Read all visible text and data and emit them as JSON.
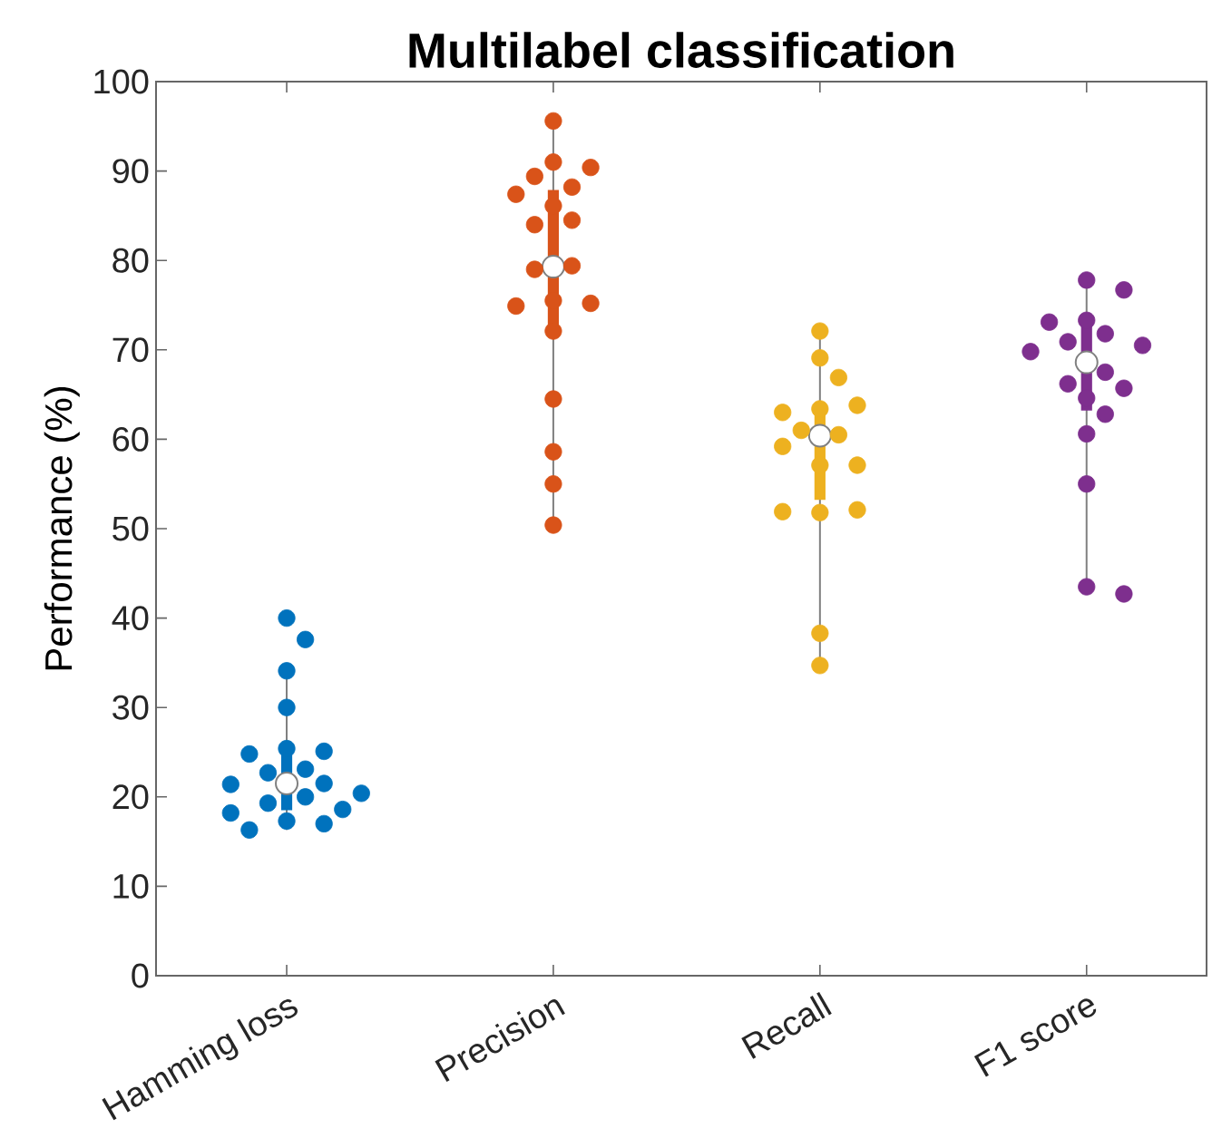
{
  "chart_data": {
    "type": "box",
    "title": "Multilabel classification",
    "ylabel": "Performance (%)",
    "categories": [
      "Hamming loss",
      "Precision",
      "Recall",
      "F1 score"
    ],
    "ylim": [
      0,
      100
    ],
    "yticks": [
      0,
      10,
      20,
      30,
      40,
      50,
      60,
      70,
      80,
      90,
      100
    ],
    "grid": false,
    "boxes": [
      {
        "low": 16.3,
        "q1": 18.6,
        "median": 21.5,
        "q3": 25.3,
        "high": 34.1
      },
      {
        "low": 50.4,
        "q1": 72.8,
        "median": 79.3,
        "q3": 87.8,
        "high": 95.4
      },
      {
        "low": 34.7,
        "q1": 53.3,
        "median": 60.4,
        "q3": 62.9,
        "high": 72.1
      },
      {
        "low": 42.7,
        "q1": 63.3,
        "median": 68.6,
        "q3": 72.8,
        "high": 77.6
      }
    ],
    "colors": [
      "#0072bd",
      "#d95319",
      "#edb120",
      "#7e2f8e"
    ],
    "series": [
      {
        "type": "scatter",
        "color": "#0072bd",
        "x": [
          "Hamming loss",
          "Hamming loss",
          "Hamming loss",
          "Hamming loss",
          "Hamming loss",
          "Hamming loss",
          "Hamming loss",
          "Hamming loss",
          "Hamming loss",
          "Hamming loss",
          "Hamming loss",
          "Hamming loss",
          "Hamming loss",
          "Hamming loss",
          "Hamming loss",
          "Hamming loss",
          "Hamming loss",
          "Hamming loss",
          "Hamming loss"
        ],
        "values": [
          40.0,
          37.6,
          34.1,
          30.0,
          25.4,
          25.1,
          24.8,
          23.1,
          22.7,
          21.5,
          21.4,
          20.4,
          20.0,
          19.3,
          18.6,
          18.2,
          17.3,
          17.0,
          16.3
        ]
      },
      {
        "type": "scatter",
        "color": "#d95319",
        "x": [
          "Precision",
          "Precision",
          "Precision",
          "Precision",
          "Precision",
          "Precision",
          "Precision",
          "Precision",
          "Precision",
          "Precision",
          "Precision",
          "Precision",
          "Precision",
          "Precision",
          "Precision",
          "Precision",
          "Precision",
          "Precision",
          "Precision"
        ],
        "values": [
          95.6,
          91.0,
          90.4,
          89.4,
          88.2,
          87.4,
          86.1,
          84.5,
          84.0,
          79.4,
          79.0,
          75.5,
          75.2,
          74.9,
          72.1,
          64.5,
          58.6,
          55.0,
          50.4
        ]
      },
      {
        "type": "scatter",
        "color": "#edb120",
        "x": [
          "Recall",
          "Recall",
          "Recall",
          "Recall",
          "Recall",
          "Recall",
          "Recall",
          "Recall",
          "Recall",
          "Recall",
          "Recall",
          "Recall",
          "Recall",
          "Recall",
          "Recall",
          "Recall"
        ],
        "values": [
          72.1,
          69.1,
          66.9,
          63.4,
          63.8,
          63.0,
          60.5,
          61.0,
          59.2,
          57.1,
          57.1,
          51.8,
          52.1,
          51.9,
          38.3,
          34.7
        ]
      },
      {
        "type": "scatter",
        "color": "#7e2f8e",
        "x": [
          "F1 score",
          "F1 score",
          "F1 score",
          "F1 score",
          "F1 score",
          "F1 score",
          "F1 score",
          "F1 score",
          "F1 score",
          "F1 score",
          "F1 score",
          "F1 score",
          "F1 score",
          "F1 score",
          "F1 score",
          "F1 score",
          "F1 score"
        ],
        "values": [
          77.8,
          76.7,
          73.3,
          71.8,
          73.1,
          70.9,
          70.5,
          69.8,
          67.5,
          66.2,
          65.7,
          64.6,
          62.8,
          60.6,
          55.0,
          43.5,
          42.7
        ]
      }
    ]
  }
}
